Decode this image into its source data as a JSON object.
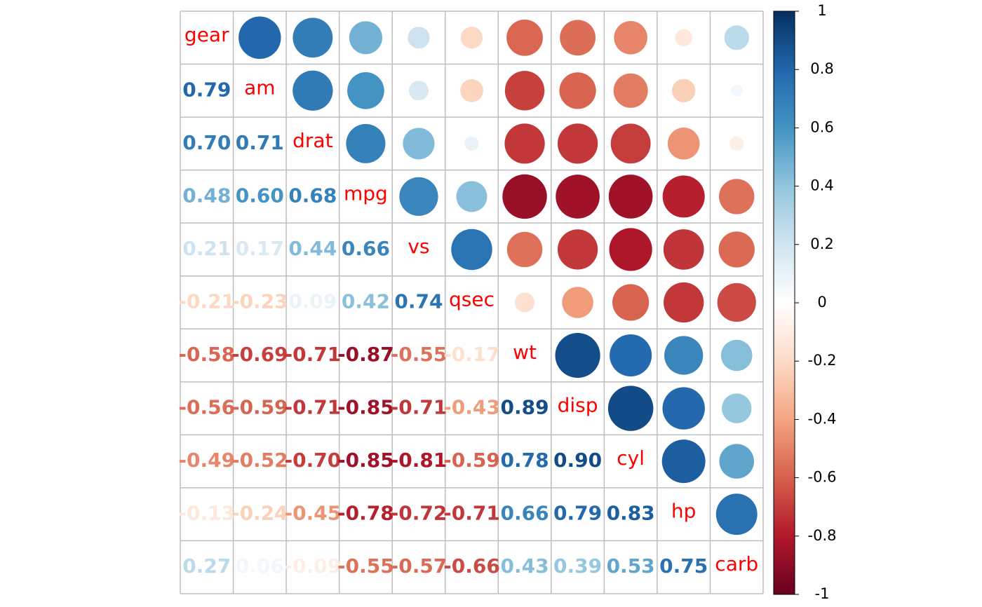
{
  "chart_data": {
    "type": "corrplot",
    "variables": [
      "gear",
      "am",
      "drat",
      "mpg",
      "vs",
      "qsec",
      "wt",
      "disp",
      "cyl",
      "hp",
      "carb"
    ],
    "values": [
      [
        0.79
      ],
      [
        0.7,
        0.71
      ],
      [
        0.48,
        0.6,
        0.68
      ],
      [
        0.21,
        0.17,
        0.44,
        0.66
      ],
      [
        -0.21,
        -0.23,
        0.09,
        0.42,
        0.74
      ],
      [
        -0.58,
        -0.69,
        -0.71,
        -0.87,
        -0.55,
        -0.17
      ],
      [
        -0.56,
        -0.59,
        -0.71,
        -0.85,
        -0.71,
        -0.43,
        0.89
      ],
      [
        -0.49,
        -0.52,
        -0.7,
        -0.85,
        -0.81,
        -0.59,
        0.78,
        0.9
      ],
      [
        -0.13,
        -0.24,
        -0.45,
        -0.78,
        -0.72,
        -0.71,
        0.66,
        0.79,
        0.83
      ],
      [
        0.27,
        0.06,
        -0.09,
        -0.55,
        -0.57,
        -0.66,
        0.43,
        0.39,
        0.53,
        0.75
      ]
    ],
    "value_labels": [
      [
        "0.79"
      ],
      [
        "0.70",
        "0.71"
      ],
      [
        "0.48",
        "0.60",
        "0.68"
      ],
      [
        "0.21",
        "0.17",
        "0.44",
        "0.66"
      ],
      [
        "-0.21",
        "-0.23",
        "0.09",
        "0.42",
        "0.74"
      ],
      [
        "-0.58",
        "-0.69",
        "-0.71",
        "-0.87",
        "-0.55",
        "-0.17"
      ],
      [
        "-0.56",
        "-0.59",
        "-0.71",
        "-0.85",
        "-0.71",
        "-0.43",
        "0.89"
      ],
      [
        "-0.49",
        "-0.52",
        "-0.70",
        "-0.85",
        "-0.81",
        "-0.59",
        "0.78",
        "0.90"
      ],
      [
        "-0.13",
        "-0.24",
        "-0.45",
        "-0.78",
        "-0.72",
        "-0.71",
        "0.66",
        "0.79",
        "0.83"
      ],
      [
        "0.27",
        "0.06",
        "-0.09",
        "-0.55",
        "-0.57",
        "-0.66",
        "0.43",
        "0.39",
        "0.53",
        "0.75"
      ]
    ],
    "palette": [
      "#67001F",
      "#B2182B",
      "#D6604D",
      "#F4A582",
      "#FDDBC7",
      "#FFFFFF",
      "#D1E5F0",
      "#92C5DE",
      "#4393C3",
      "#2166AC",
      "#053061"
    ],
    "label_color": "#FF0000",
    "ylim": [
      -1,
      1
    ],
    "yticks": [
      -1,
      -0.8,
      -0.6,
      -0.4,
      -0.2,
      0,
      0.2,
      0.4,
      0.6,
      0.8,
      1
    ]
  }
}
